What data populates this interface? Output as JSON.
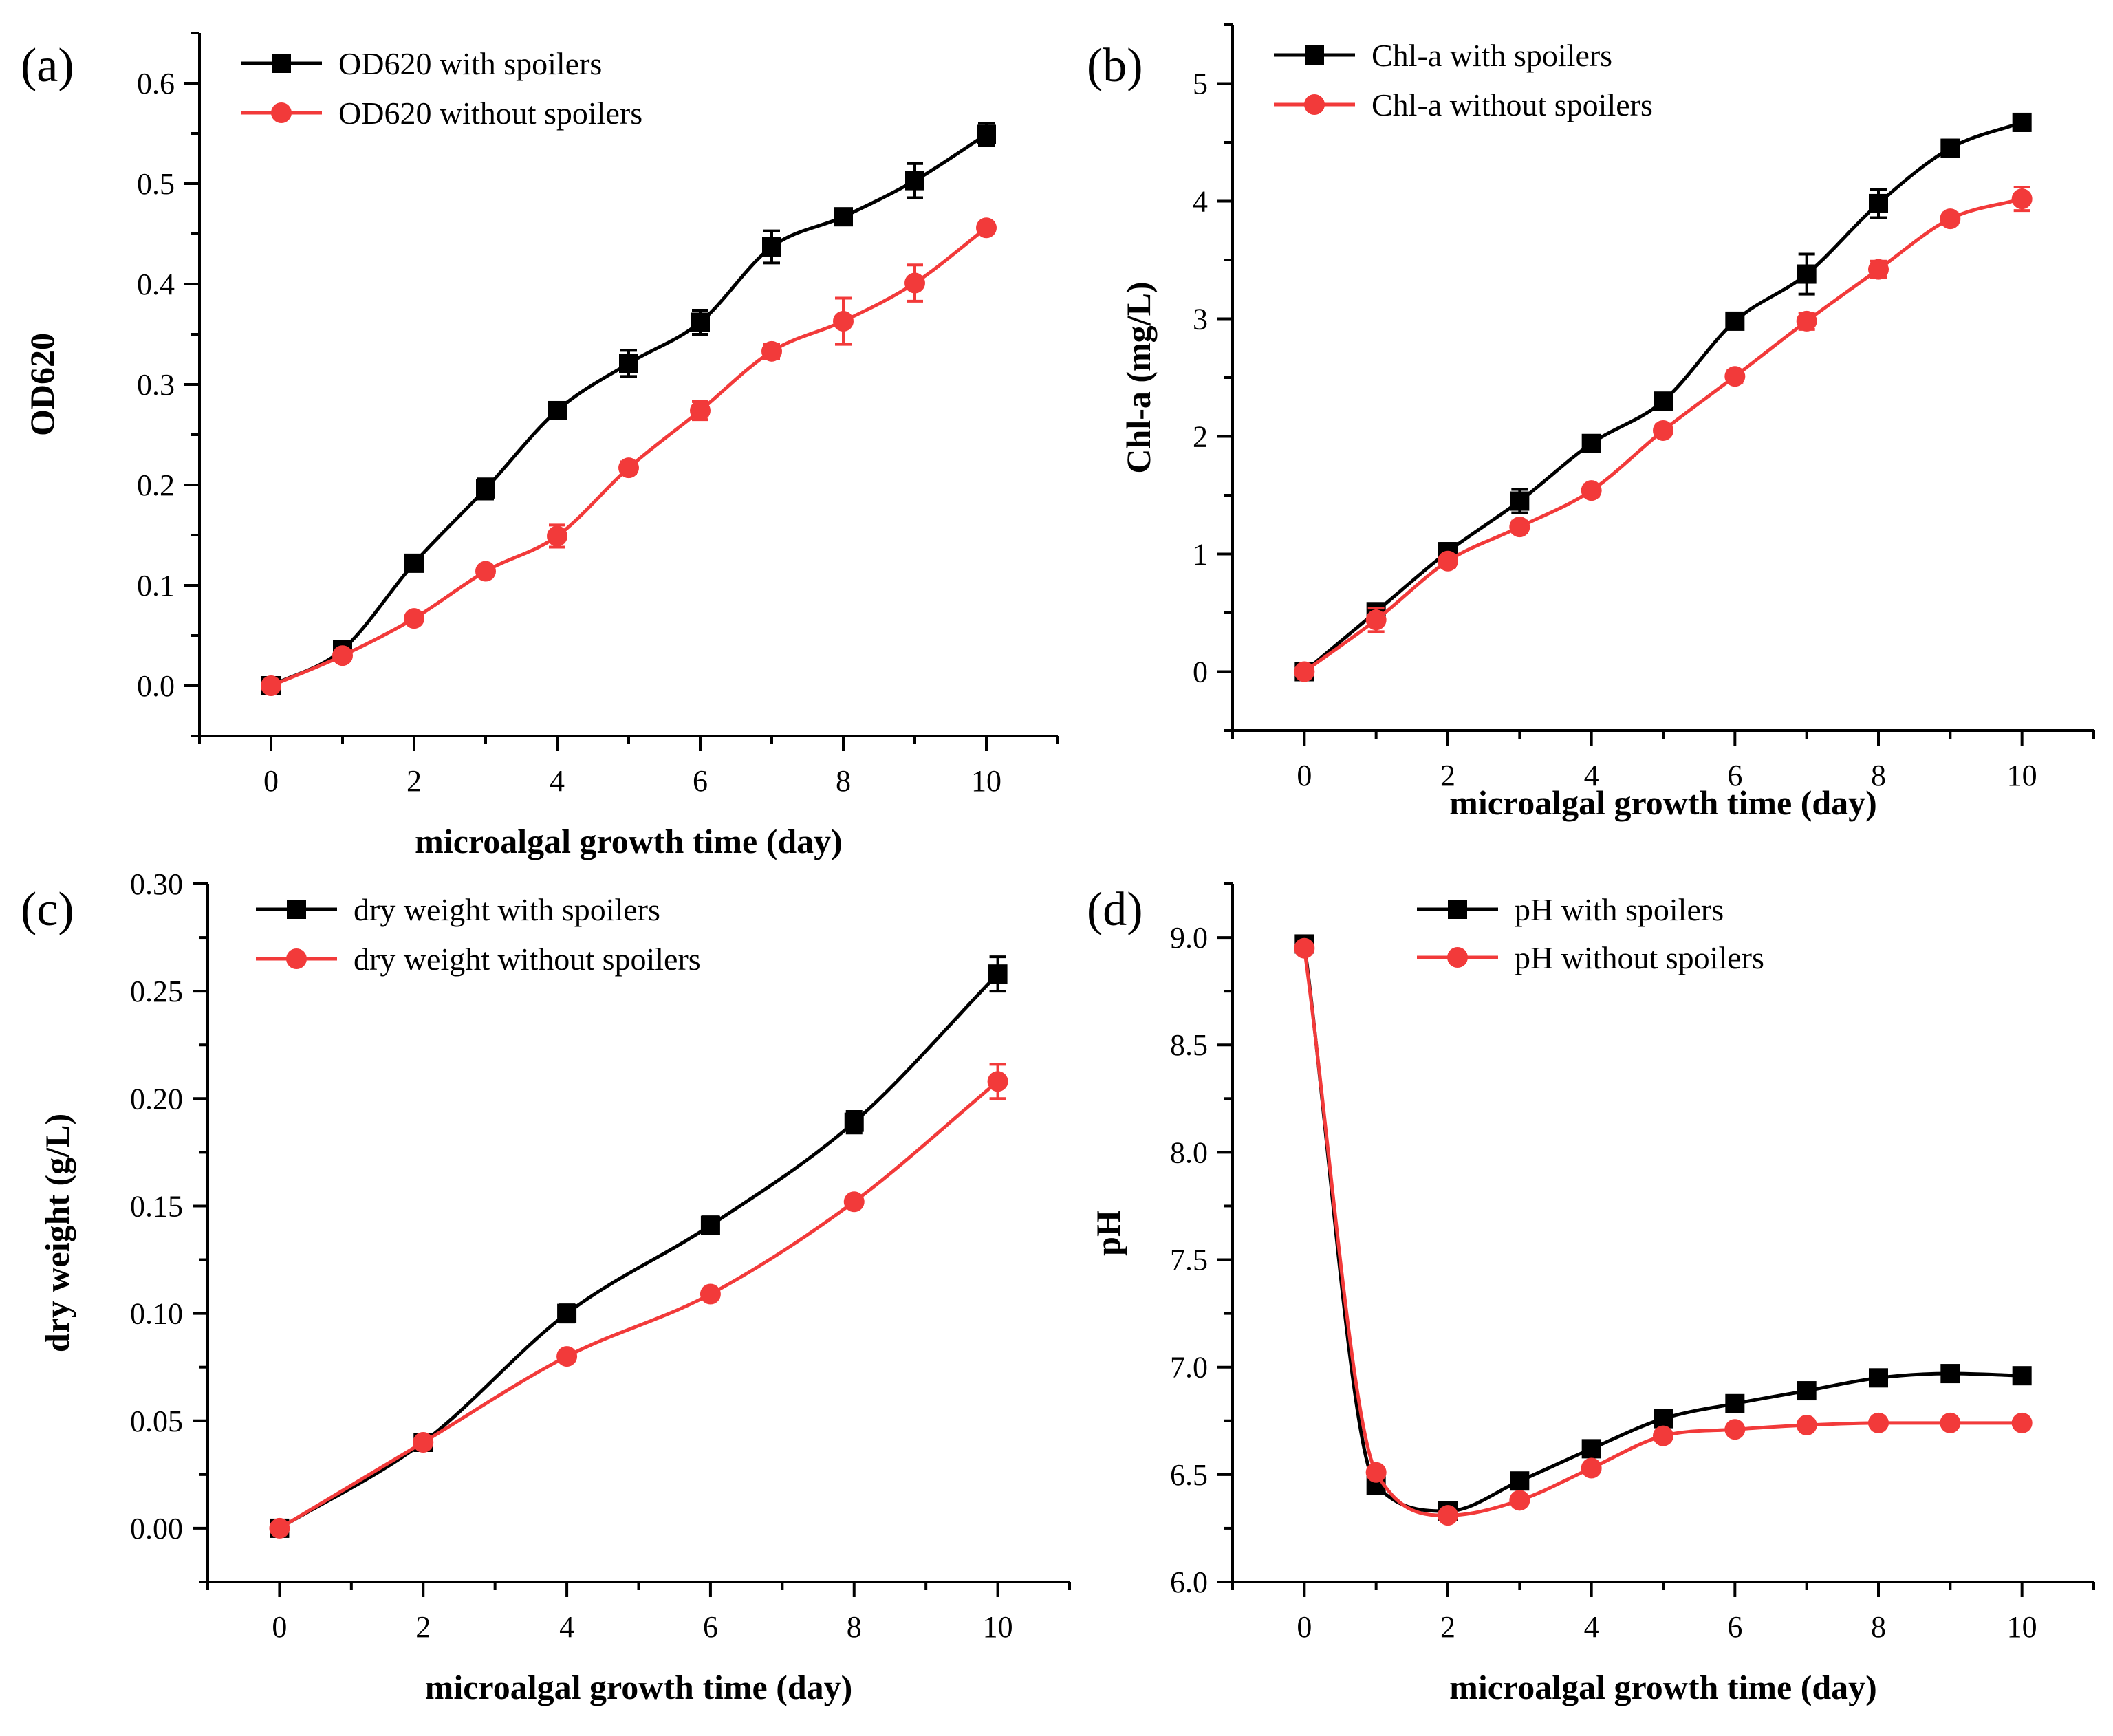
{
  "figure": {
    "colors": {
      "with_spoilers": "#000000",
      "without_spoilers": "#f23a3a"
    }
  },
  "chart_data": [
    {
      "panel": "(a)",
      "type": "line",
      "xlabel": "microalgal growth time (day)",
      "ylabel": "OD620",
      "xlim": [
        -1,
        11
      ],
      "ylim": [
        -0.05,
        0.65
      ],
      "x_ticks": [
        "0",
        "2",
        "4",
        "6",
        "8",
        "10"
      ],
      "y_ticks": [
        "0.0",
        "0.1",
        "0.2",
        "0.3",
        "0.4",
        "0.5",
        "0.6"
      ],
      "legend": "top-left",
      "series": [
        {
          "name": "OD620 with spoilers",
          "marker": "square",
          "color": "#000000",
          "x": [
            0,
            1,
            2,
            3,
            4,
            5,
            6,
            7,
            8,
            9,
            10
          ],
          "values": [
            0.0,
            0.036,
            0.122,
            0.196,
            0.274,
            0.321,
            0.362,
            0.437,
            0.467,
            0.503,
            0.549
          ],
          "errors": [
            0.004,
            0.004,
            0.004,
            0.01,
            0.006,
            0.013,
            0.012,
            0.016,
            0.006,
            0.017,
            0.011
          ]
        },
        {
          "name": "OD620 without spoilers",
          "marker": "circle",
          "color": "#f23a3a",
          "x": [
            0,
            1,
            2,
            3,
            4,
            5,
            6,
            7,
            8,
            9,
            10
          ],
          "values": [
            0.0,
            0.03,
            0.067,
            0.114,
            0.149,
            0.217,
            0.274,
            0.333,
            0.363,
            0.401,
            0.456
          ],
          "errors": [
            0.003,
            0.004,
            0.004,
            0.005,
            0.011,
            0.006,
            0.009,
            0.007,
            0.023,
            0.018,
            0.005
          ]
        }
      ]
    },
    {
      "panel": "(b)",
      "type": "line",
      "xlabel": "microalgal growth time (day)",
      "ylabel": "Chl-a (mg/L)",
      "xlim": [
        -1,
        11
      ],
      "ylim": [
        -0.5,
        5.5
      ],
      "x_ticks": [
        "0",
        "2",
        "4",
        "6",
        "8",
        "10"
      ],
      "y_ticks": [
        "0",
        "1",
        "2",
        "3",
        "4",
        "5"
      ],
      "legend": "top-left",
      "series": [
        {
          "name": "Chl-a with spoilers",
          "marker": "square",
          "color": "#000000",
          "x": [
            0,
            1,
            2,
            3,
            4,
            5,
            6,
            7,
            8,
            9,
            10
          ],
          "values": [
            0.0,
            0.51,
            1.02,
            1.45,
            1.94,
            2.3,
            2.98,
            3.38,
            3.98,
            4.45,
            4.67
          ],
          "errors": [
            0.03,
            0.05,
            0.07,
            0.1,
            0.05,
            0.05,
            0.05,
            0.17,
            0.12,
            0.07,
            0.07
          ]
        },
        {
          "name": "Chl-a without spoilers",
          "marker": "circle",
          "color": "#f23a3a",
          "x": [
            0,
            1,
            2,
            3,
            4,
            5,
            6,
            7,
            8,
            9,
            10
          ],
          "values": [
            0.0,
            0.44,
            0.94,
            1.23,
            1.54,
            2.05,
            2.51,
            2.98,
            3.42,
            3.85,
            4.02
          ],
          "errors": [
            0.03,
            0.1,
            0.05,
            0.05,
            0.05,
            0.05,
            0.05,
            0.07,
            0.07,
            0.05,
            0.1
          ]
        }
      ]
    },
    {
      "panel": "(c)",
      "type": "line",
      "xlabel": "microalgal growth time (day)",
      "ylabel": "dry weight (g/L)",
      "xlim": [
        -1,
        11
      ],
      "ylim": [
        -0.025,
        0.3
      ],
      "x_ticks": [
        "0",
        "2",
        "4",
        "6",
        "8",
        "10"
      ],
      "y_ticks": [
        "0.00",
        "0.05",
        "0.10",
        "0.15",
        "0.20",
        "0.25",
        "0.30"
      ],
      "legend": "top-left",
      "series": [
        {
          "name": "dry weight with spoilers",
          "marker": "square",
          "color": "#000000",
          "x": [
            0,
            2,
            4,
            6,
            8,
            10
          ],
          "values": [
            0.0,
            0.04,
            0.1,
            0.141,
            0.189,
            0.258
          ],
          "errors": [
            0.002,
            0.003,
            0.004,
            0.004,
            0.005,
            0.008
          ]
        },
        {
          "name": "dry weight without spoilers",
          "marker": "circle",
          "color": "#f23a3a",
          "x": [
            0,
            2,
            4,
            6,
            8,
            10
          ],
          "values": [
            0.0,
            0.04,
            0.08,
            0.109,
            0.152,
            0.208
          ],
          "errors": [
            0.002,
            0.002,
            0.002,
            0.002,
            0.002,
            0.008
          ]
        }
      ]
    },
    {
      "panel": "(d)",
      "type": "line",
      "xlabel": "microalgal growth time (day)",
      "ylabel": "pH",
      "xlim": [
        -1,
        11
      ],
      "ylim": [
        6.0,
        9.25
      ],
      "x_ticks": [
        "0",
        "2",
        "4",
        "6",
        "8",
        "10"
      ],
      "y_ticks": [
        "6.0",
        "6.5",
        "7.0",
        "7.5",
        "8.0",
        "8.5",
        "9.0"
      ],
      "legend": "top-center",
      "series": [
        {
          "name": "pH with spoilers",
          "marker": "square",
          "color": "#000000",
          "x": [
            0,
            1,
            2,
            3,
            4,
            5,
            6,
            7,
            8,
            9,
            10
          ],
          "values": [
            8.97,
            6.45,
            6.33,
            6.47,
            6.62,
            6.76,
            6.83,
            6.89,
            6.95,
            6.97,
            6.96
          ],
          "errors": [
            0.02,
            0.02,
            0.02,
            0.02,
            0.02,
            0.02,
            0.02,
            0.02,
            0.02,
            0.02,
            0.02
          ]
        },
        {
          "name": "pH  without spoilers",
          "marker": "circle",
          "color": "#f23a3a",
          "x": [
            0,
            1,
            2,
            3,
            4,
            5,
            6,
            7,
            8,
            9,
            10
          ],
          "values": [
            8.95,
            6.51,
            6.31,
            6.38,
            6.53,
            6.68,
            6.71,
            6.73,
            6.74,
            6.74,
            6.74
          ],
          "errors": [
            0.02,
            0.02,
            0.02,
            0.02,
            0.02,
            0.02,
            0.02,
            0.02,
            0.02,
            0.02,
            0.02
          ]
        }
      ]
    }
  ]
}
